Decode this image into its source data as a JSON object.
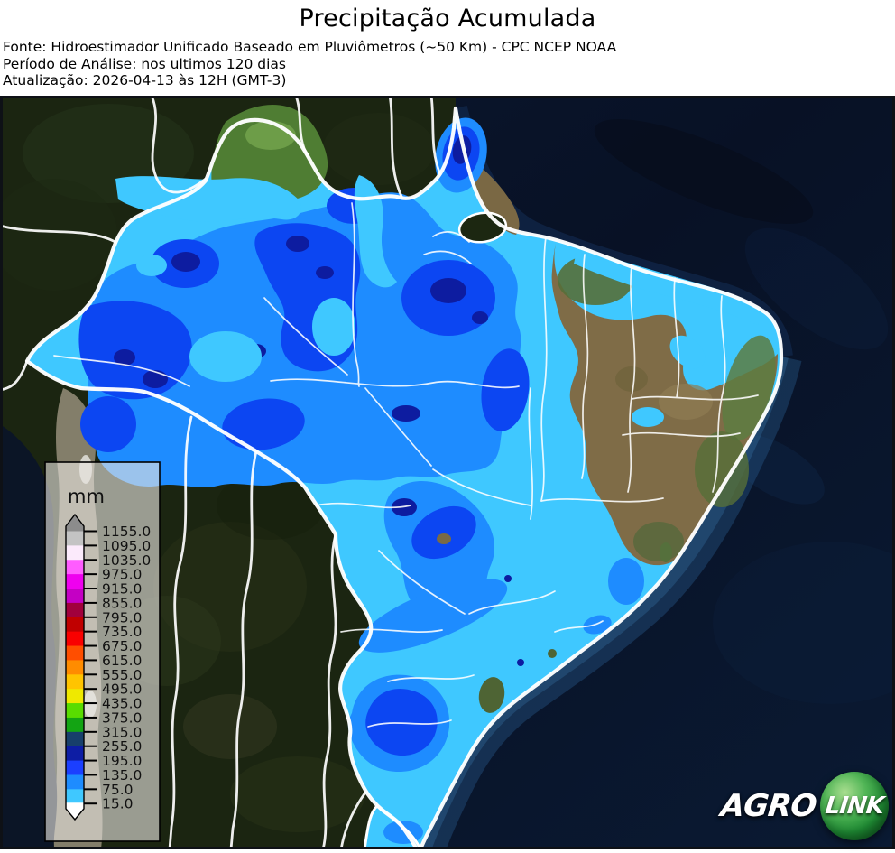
{
  "header": {
    "title": "Precipitação Acumulada",
    "source_line": "Fonte: Hidroestimador Unificado Baseado em Pluviômetros (~50 Km) - CPC NCEP NOAA",
    "period_line": "Período de Análise: nos ultimos 120 dias",
    "update_line": "Atualização: 2026-04-13 às 12H (GMT-3)"
  },
  "legend": {
    "unit_label": "mm",
    "tick_labels": [
      "1155.0",
      "1095.0",
      "1035.0",
      "975.0",
      "915.0",
      "855.0",
      "795.0",
      "735.0",
      "675.0",
      "615.0",
      "555.0",
      "495.0",
      "435.0",
      "375.0",
      "315.0",
      "255.0",
      "195.0",
      "135.0",
      "75.0",
      "15.0"
    ],
    "colors_top_to_bottom": [
      "#c3c3c3",
      "#fbeafb",
      "#ff5cff",
      "#ef00ef",
      "#c400c4",
      "#a1003c",
      "#c00000",
      "#f90000",
      "#ff4e00",
      "#ff8c00",
      "#ffc400",
      "#efe900",
      "#59dc00",
      "#13a413",
      "#173f6b",
      "#0d1da4",
      "#1b3fff",
      "#1e8cff",
      "#3fc8ff"
    ],
    "arrow_over_color": "#8c8c8c",
    "arrow_under_color": "#ffffff"
  },
  "map_palette": {
    "rain_15_75": "#3fc8ff",
    "rain_75_135": "#1e8cff",
    "rain_135_195": "#0c46f2",
    "rain_195_255": "#0d1ca0"
  },
  "logo": {
    "agro": "AGRO",
    "link": "LINK"
  }
}
